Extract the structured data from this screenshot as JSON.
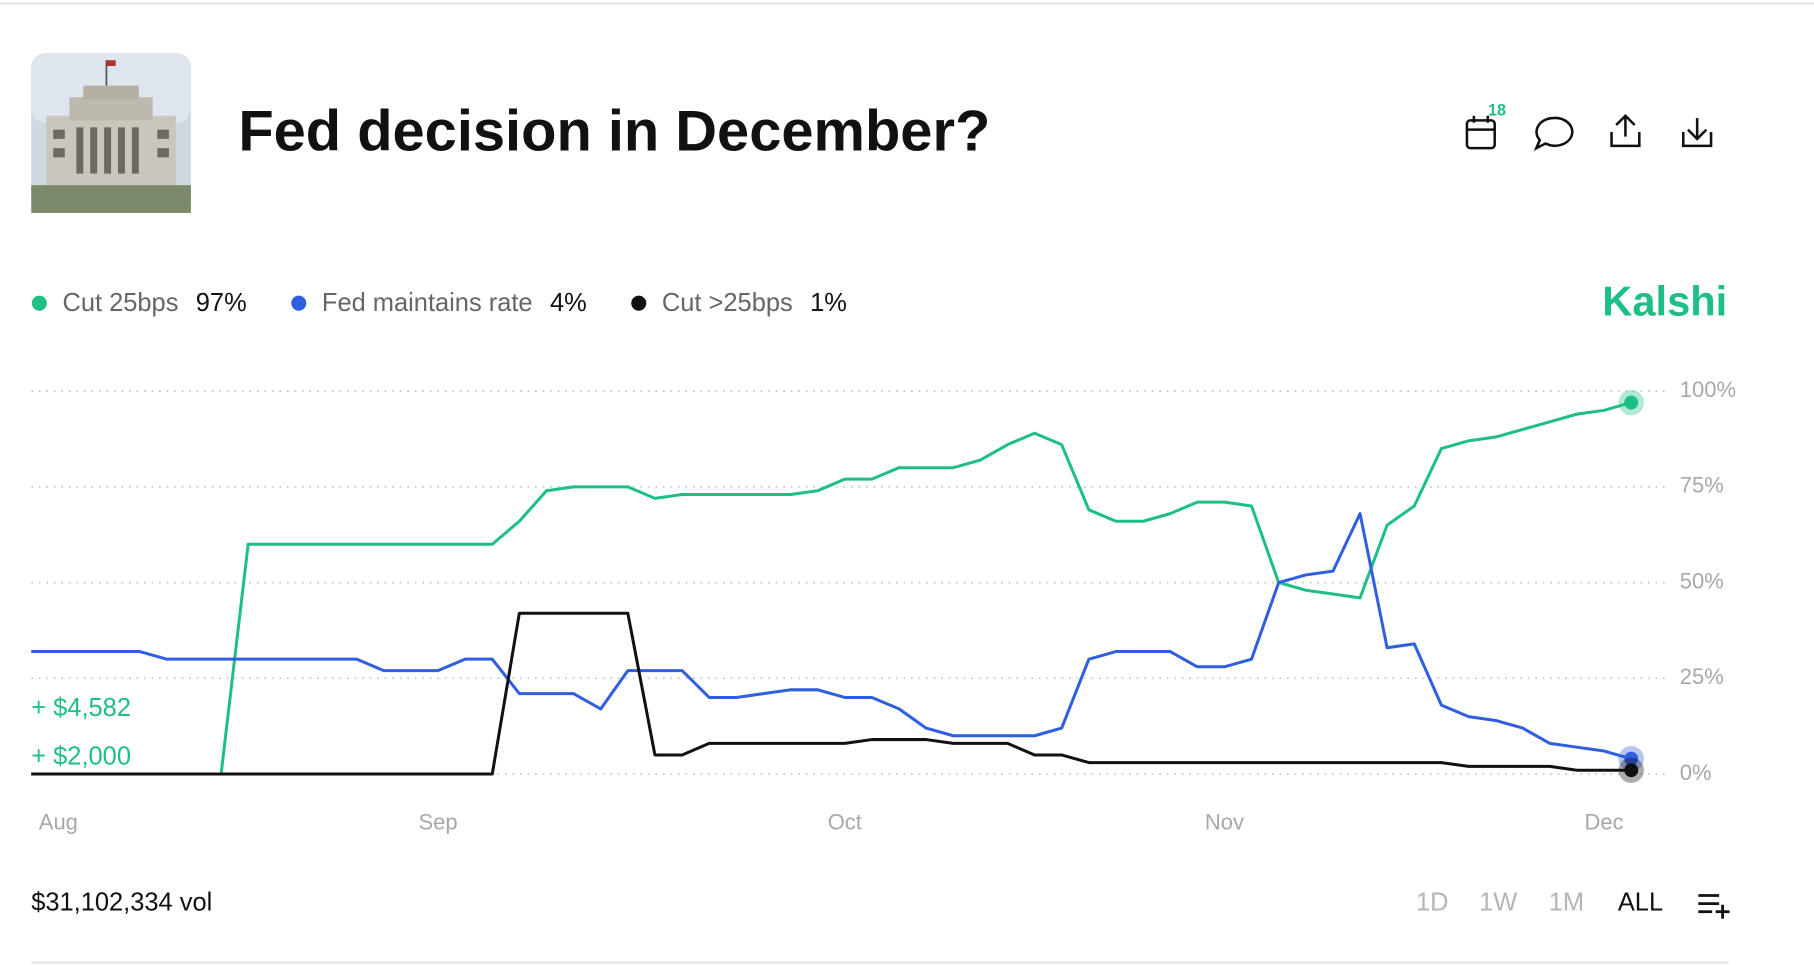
{
  "header": {
    "title": "Fed decision in December?",
    "calendar_badge": "18",
    "brand": "Kalshi"
  },
  "chart_data": {
    "type": "line",
    "categories": [
      null,
      "Aug",
      null,
      null,
      null,
      null,
      null,
      null,
      null,
      null,
      null,
      null,
      null,
      null,
      null,
      "Sep",
      null,
      null,
      null,
      null,
      null,
      null,
      null,
      null,
      null,
      null,
      null,
      null,
      null,
      null,
      "Oct",
      null,
      null,
      null,
      null,
      null,
      null,
      null,
      null,
      null,
      null,
      null,
      null,
      null,
      "Nov",
      null,
      null,
      null,
      null,
      null,
      null,
      null,
      null,
      null,
      null,
      null,
      null,
      null,
      "Dec",
      null
    ],
    "series": [
      {
        "name": "Cut 25bps",
        "latest": "97%",
        "color": "#1dbf84",
        "values": [
          0,
          0,
          0,
          0,
          0,
          0,
          0,
          0,
          60,
          60,
          60,
          60,
          60,
          60,
          60,
          60,
          60,
          60,
          66,
          74,
          75,
          75,
          75,
          72,
          73,
          73,
          73,
          73,
          73,
          74,
          77,
          77,
          80,
          80,
          80,
          82,
          86,
          89,
          86,
          69,
          66,
          66,
          68,
          71,
          71,
          70,
          50,
          48,
          47,
          46,
          65,
          70,
          85,
          87,
          88,
          90,
          92,
          94,
          95,
          97
        ]
      },
      {
        "name": "Fed maintains rate",
        "latest": "4%",
        "color": "#2f5fe0",
        "values": [
          32,
          32,
          32,
          32,
          32,
          30,
          30,
          30,
          30,
          30,
          30,
          30,
          30,
          27,
          27,
          27,
          30,
          30,
          21,
          21,
          21,
          17,
          27,
          27,
          27,
          20,
          20,
          21,
          22,
          22,
          20,
          20,
          17,
          12,
          10,
          10,
          10,
          10,
          12,
          30,
          32,
          32,
          32,
          28,
          28,
          30,
          50,
          52,
          53,
          68,
          33,
          34,
          18,
          15,
          14,
          12,
          8,
          7,
          6,
          4
        ]
      },
      {
        "name": "Cut >25bps",
        "latest": "1%",
        "color": "#111111",
        "values": [
          0,
          0,
          0,
          0,
          0,
          0,
          0,
          0,
          0,
          0,
          0,
          0,
          0,
          0,
          0,
          0,
          0,
          0,
          42,
          42,
          42,
          42,
          42,
          5,
          5,
          8,
          8,
          8,
          8,
          8,
          8,
          9,
          9,
          9,
          8,
          8,
          8,
          5,
          5,
          3,
          3,
          3,
          3,
          3,
          3,
          3,
          3,
          3,
          3,
          3,
          3,
          3,
          3,
          2,
          2,
          2,
          2,
          1,
          1,
          1
        ]
      }
    ],
    "ylim": [
      0,
      100
    ],
    "yticks": [
      {
        "value": 0,
        "label": "0%"
      },
      {
        "value": 25,
        "label": "25%"
      },
      {
        "value": 50,
        "label": "50%"
      },
      {
        "value": 75,
        "label": "75%"
      },
      {
        "value": 100,
        "label": "100%"
      }
    ],
    "grid": true,
    "annotations": [
      "+ $4,582",
      "+ $2,000"
    ]
  },
  "footer": {
    "volume": "$31,102,334 vol",
    "ranges": [
      "1D",
      "1W",
      "1M",
      "ALL"
    ]
  }
}
